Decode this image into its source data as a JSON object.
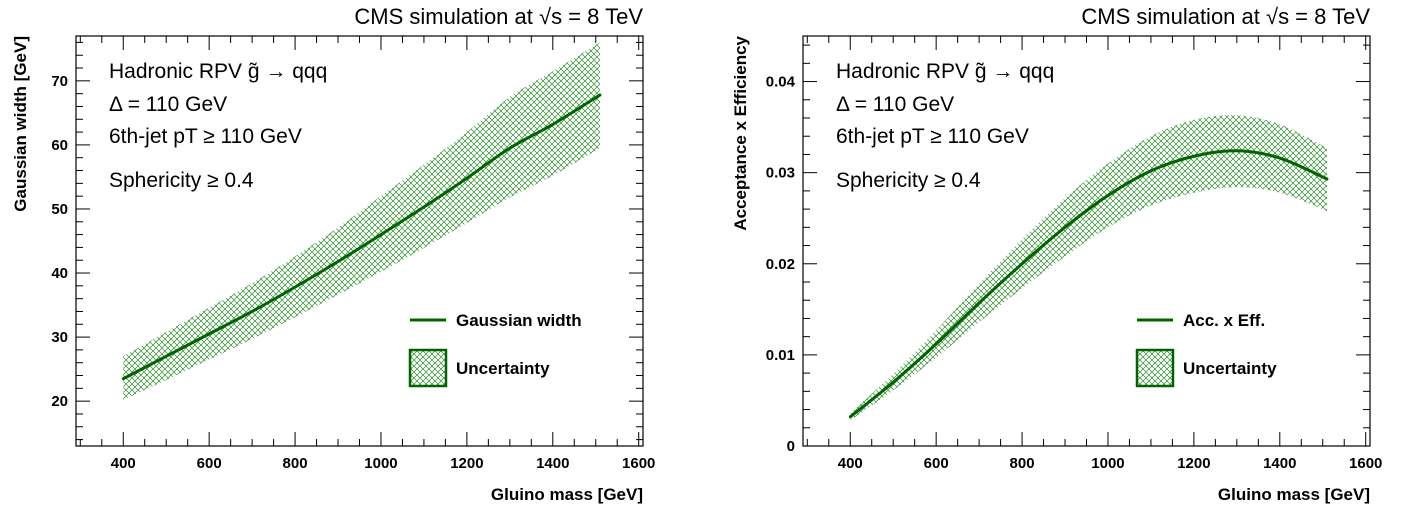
{
  "colors": {
    "curve": "#006400",
    "band": "#2e8b2e",
    "axis": "#000000"
  },
  "chart_data": [
    {
      "type": "line",
      "title": "CMS simulation at √s = 8 TeV",
      "annotations": [
        "Hadronic RPV g̃ → qqq",
        "Δ = 110 GeV",
        "6th-jet pT ≥ 110 GeV",
        "Sphericity ≥ 0.4"
      ],
      "xlabel": "Gluino mass [GeV]",
      "ylabel": "Gaussian width [GeV]",
      "xlim": [
        290,
        1610
      ],
      "ylim": [
        13,
        77
      ],
      "xticks": [
        "400",
        "600",
        "800",
        "1000",
        "1200",
        "1400",
        "1600"
      ],
      "yticks": [
        "20",
        "30",
        "40",
        "50",
        "60",
        "70"
      ],
      "legend": {
        "placement": "lower-right",
        "entries": [
          "Gaussian width",
          "Uncertainty"
        ]
      },
      "x": [
        400,
        500,
        600,
        700,
        800,
        900,
        1000,
        1100,
        1200,
        1300,
        1400,
        1510
      ],
      "series": [
        {
          "name": "Gaussian width",
          "values": [
            23.5,
            27.0,
            30.5,
            34.0,
            37.8,
            41.8,
            46.0,
            50.3,
            54.8,
            59.5,
            63.2,
            67.8
          ]
        }
      ],
      "band": {
        "name": "Uncertainty",
        "upper": [
          27.0,
          30.8,
          34.6,
          38.4,
          42.6,
          47.1,
          52.0,
          56.9,
          62.0,
          67.5,
          71.5,
          76.0
        ],
        "lower": [
          20.2,
          23.3,
          26.5,
          29.7,
          33.1,
          36.6,
          40.2,
          43.9,
          47.8,
          51.8,
          55.2,
          59.5
        ]
      }
    },
    {
      "type": "line",
      "title": "CMS simulation at √s = 8 TeV",
      "annotations": [
        "Hadronic RPV g̃ → qqq",
        "Δ = 110 GeV",
        "6th-jet pT ≥ 110 GeV",
        "Sphericity ≥ 0.4"
      ],
      "xlabel": "Gluino mass [GeV]",
      "ylabel": "Acceptance x Efficiency",
      "xlim": [
        290,
        1610
      ],
      "ylim": [
        0,
        0.045
      ],
      "xticks": [
        "400",
        "600",
        "800",
        "1000",
        "1200",
        "1400",
        "1600"
      ],
      "yticks": [
        "0",
        "0.01",
        "0.02",
        "0.03",
        "0.04"
      ],
      "legend": {
        "placement": "lower-right",
        "entries": [
          "Acc. x Eff.",
          "Uncertainty"
        ]
      },
      "x": [
        400,
        500,
        600,
        700,
        800,
        900,
        1000,
        1100,
        1200,
        1300,
        1400,
        1510
      ],
      "series": [
        {
          "name": "Acc. x Eff.",
          "values": [
            0.0032,
            0.007,
            0.0112,
            0.0157,
            0.02,
            0.024,
            0.0275,
            0.0302,
            0.0318,
            0.0324,
            0.0316,
            0.0293
          ]
        }
      ],
      "band": {
        "name": "Uncertainty",
        "upper": [
          0.0036,
          0.0079,
          0.0127,
          0.0178,
          0.0227,
          0.0272,
          0.031,
          0.034,
          0.0358,
          0.0363,
          0.0353,
          0.0327
        ],
        "lower": [
          0.0028,
          0.0061,
          0.0097,
          0.0136,
          0.0173,
          0.0208,
          0.024,
          0.0264,
          0.0278,
          0.0284,
          0.0278,
          0.0258
        ]
      }
    }
  ]
}
